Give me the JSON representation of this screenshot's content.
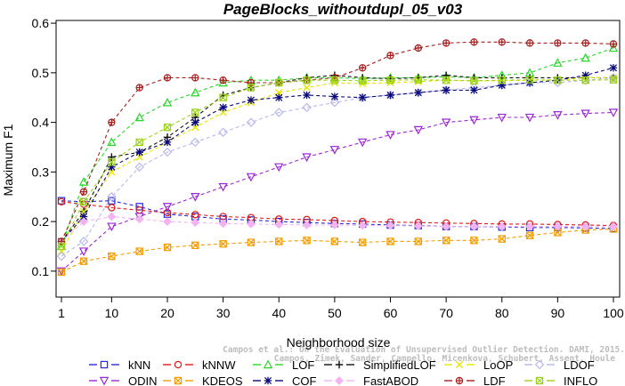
{
  "chart_data": {
    "type": "line",
    "title": "PageBlocks_withoutdupl_05_v03",
    "xlabel": "Neighborhood size",
    "ylabel": "Maximum F1",
    "xlim": [
      1,
      100
    ],
    "ylim": [
      0.09,
      0.6
    ],
    "xticks": [
      1,
      10,
      20,
      30,
      40,
      50,
      60,
      70,
      80,
      90,
      100
    ],
    "yticks": [
      0.1,
      0.2,
      0.3,
      0.4,
      0.5,
      0.6
    ],
    "x": [
      1,
      5,
      10,
      15,
      20,
      25,
      30,
      35,
      40,
      45,
      50,
      55,
      60,
      65,
      70,
      75,
      80,
      85,
      90,
      95,
      100
    ],
    "series": [
      {
        "name": "kNN",
        "color": "#2a2ad8",
        "marker": "square",
        "values": [
          0.242,
          0.24,
          0.242,
          0.23,
          0.215,
          0.21,
          0.205,
          0.203,
          0.2,
          0.198,
          0.196,
          0.195,
          0.193,
          0.192,
          0.19,
          0.19,
          0.189,
          0.188,
          0.188,
          0.187,
          0.186
        ]
      },
      {
        "name": "kNNW",
        "color": "#e01a1a",
        "marker": "circle",
        "values": [
          0.24,
          0.235,
          0.228,
          0.223,
          0.218,
          0.214,
          0.21,
          0.208,
          0.205,
          0.204,
          0.202,
          0.2,
          0.199,
          0.198,
          0.197,
          0.196,
          0.195,
          0.195,
          0.194,
          0.193,
          0.192
        ]
      },
      {
        "name": "LOF",
        "color": "#27d827",
        "marker": "triangle-up",
        "values": [
          0.15,
          0.28,
          0.36,
          0.41,
          0.44,
          0.46,
          0.48,
          0.485,
          0.485,
          0.49,
          0.49,
          0.488,
          0.49,
          0.49,
          0.492,
          0.49,
          0.495,
          0.5,
          0.52,
          0.53,
          0.55
        ]
      },
      {
        "name": "SimplifiedLOF",
        "color": "#111111",
        "marker": "plus",
        "values": [
          0.16,
          0.22,
          0.33,
          0.34,
          0.37,
          0.41,
          0.455,
          0.47,
          0.48,
          0.49,
          0.495,
          0.49,
          0.488,
          0.49,
          0.495,
          0.49,
          0.49,
          0.49,
          0.49,
          0.49,
          0.49
        ]
      },
      {
        "name": "LoOP",
        "color": "#e6e600",
        "marker": "x",
        "values": [
          0.14,
          0.22,
          0.3,
          0.33,
          0.36,
          0.39,
          0.42,
          0.44,
          0.46,
          0.47,
          0.48,
          0.478,
          0.48,
          0.482,
          0.485,
          0.484,
          0.484,
          0.485,
          0.486,
          0.49,
          0.49
        ]
      },
      {
        "name": "LDOF",
        "color": "#b7b7ec",
        "marker": "diamond",
        "values": [
          0.13,
          0.16,
          0.25,
          0.31,
          0.34,
          0.36,
          0.38,
          0.4,
          0.42,
          0.43,
          0.44,
          0.45,
          0.455,
          0.46,
          0.465,
          0.47,
          0.475,
          0.48,
          0.48,
          0.485,
          0.49
        ]
      },
      {
        "name": "ODIN",
        "color": "#9b28d6",
        "marker": "triangle-down",
        "values": [
          0.1,
          0.14,
          0.19,
          0.21,
          0.23,
          0.25,
          0.27,
          0.29,
          0.31,
          0.33,
          0.345,
          0.36,
          0.375,
          0.385,
          0.4,
          0.405,
          0.41,
          0.41,
          0.415,
          0.418,
          0.42
        ]
      },
      {
        "name": "KDEOS",
        "color": "#f59c00",
        "marker": "square-x",
        "values": [
          0.098,
          0.12,
          0.13,
          0.14,
          0.148,
          0.152,
          0.155,
          0.158,
          0.16,
          0.162,
          0.16,
          0.158,
          0.16,
          0.16,
          0.162,
          0.162,
          0.165,
          0.172,
          0.178,
          0.183,
          0.185
        ]
      },
      {
        "name": "COF",
        "color": "#0a0a7a",
        "marker": "asterisk",
        "values": [
          0.16,
          0.21,
          0.31,
          0.34,
          0.36,
          0.4,
          0.43,
          0.445,
          0.45,
          0.455,
          0.452,
          0.45,
          0.455,
          0.46,
          0.465,
          0.465,
          0.475,
          0.48,
          0.485,
          0.495,
          0.51
        ]
      },
      {
        "name": "FastABOD",
        "color": "#f3b3f3",
        "marker": "diamond-filled",
        "values": [
          0.16,
          0.2,
          0.21,
          0.205,
          0.2,
          0.198,
          0.196,
          0.195,
          0.194,
          0.193,
          0.193,
          0.192,
          0.192,
          0.191,
          0.19,
          0.19,
          0.19,
          0.19,
          0.19,
          0.19,
          0.19
        ]
      },
      {
        "name": "LDF",
        "color": "#a81f1f",
        "marker": "circle-plus",
        "values": [
          0.16,
          0.26,
          0.4,
          0.47,
          0.49,
          0.49,
          0.485,
          0.48,
          0.48,
          0.485,
          0.49,
          0.51,
          0.535,
          0.55,
          0.56,
          0.562,
          0.562,
          0.56,
          0.56,
          0.56,
          0.558
        ]
      },
      {
        "name": "INFLO",
        "color": "#9cd21a",
        "marker": "square-x",
        "values": [
          0.15,
          0.24,
          0.32,
          0.36,
          0.39,
          0.42,
          0.45,
          0.47,
          0.48,
          0.485,
          0.485,
          0.484,
          0.485,
          0.486,
          0.485,
          0.484,
          0.485,
          0.486,
          0.485,
          0.485,
          0.486
        ]
      }
    ],
    "legend_position": "bottom",
    "grid": false
  },
  "watermark": {
    "line1": "Campos et al.: On the Evaluation of Unsupervised Outlier Detection. DAMI, 2015.",
    "line2": "Campos, Zimek, Sander, Campello, Micenkova, Schubert, Assent, Houle"
  }
}
